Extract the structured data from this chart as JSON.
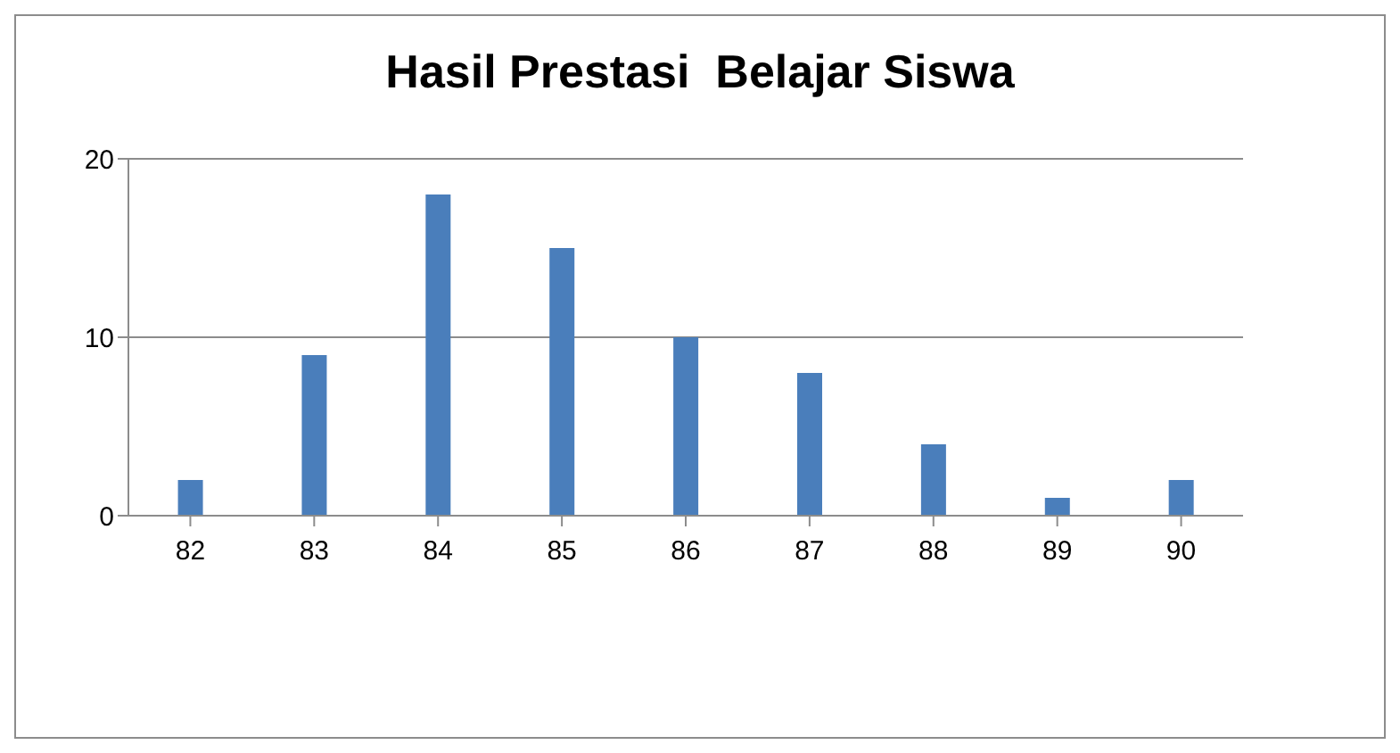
{
  "chart_data": {
    "type": "bar",
    "title": "Hasil Prestasi  Belajar Siswa",
    "categories": [
      "82",
      "83",
      "84",
      "85",
      "86",
      "87",
      "88",
      "89",
      "90"
    ],
    "values": [
      2,
      9,
      18,
      15,
      10,
      8,
      4,
      1,
      2
    ],
    "color": "#4a7ebb",
    "ylim": [
      0,
      20
    ],
    "yticks": [
      0,
      10,
      20
    ],
    "grid": "y"
  }
}
